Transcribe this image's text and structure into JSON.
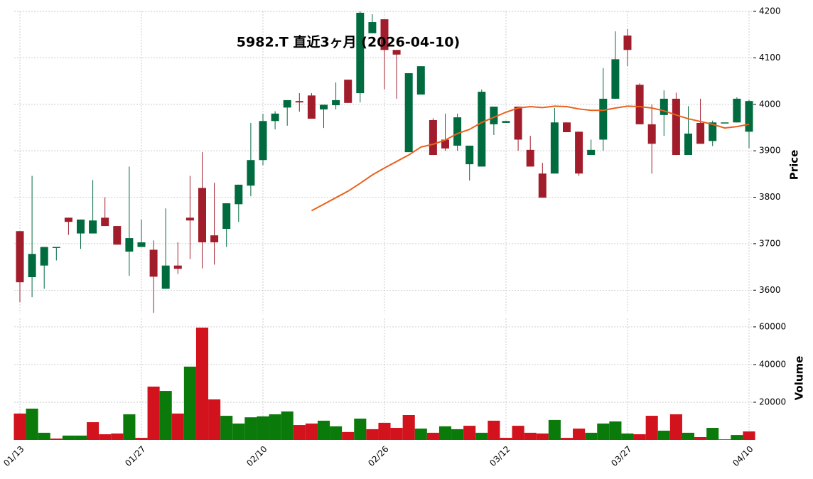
{
  "chart_data": {
    "type": "candlestick",
    "title": "5982.T 直近3ヶ月 (2026-04-10)",
    "ylabel": "Price",
    "categories": [
      "01/13",
      null,
      null,
      null,
      null,
      null,
      null,
      null,
      null,
      null,
      "01/27",
      null,
      null,
      null,
      null,
      null,
      null,
      null,
      null,
      null,
      "02/10",
      null,
      null,
      null,
      null,
      null,
      null,
      null,
      null,
      null,
      "02/26",
      null,
      null,
      null,
      null,
      null,
      null,
      null,
      null,
      null,
      "03/12",
      null,
      null,
      null,
      null,
      null,
      null,
      null,
      null,
      null,
      "03/27",
      null,
      null,
      null,
      null,
      null,
      null,
      null,
      null,
      null,
      "04/10"
    ],
    "open": [
      3727,
      3628,
      3653,
      3693,
      3756,
      3722,
      3722,
      3756,
      3738,
      3683,
      3693,
      3687,
      3603,
      3653,
      3756,
      3820,
      3718,
      3732,
      3785,
      3825,
      3880,
      3964,
      3993,
      4007,
      4019,
      3989,
      3998,
      4053,
      4024,
      4153,
      4183,
      4117,
      3897,
      4021,
      3966,
      3924,
      3911,
      3871,
      3866,
      3957,
      3960,
      3995,
      3902,
      3851,
      3851,
      3961,
      3941,
      3891,
      3924,
      4012,
      4148,
      4042,
      3957,
      3977,
      4012,
      3891,
      3960,
      3921,
      3961,
      3961,
      3941
    ],
    "high": [
      3727,
      3846,
      3693,
      3693,
      3756,
      3752,
      3837,
      3800,
      3738,
      3866,
      3752,
      3707,
      3776,
      3703,
      3846,
      3897,
      3831,
      3787,
      3827,
      3960,
      3980,
      3985,
      4009,
      4024,
      4024,
      3999,
      4047,
      4053,
      4200,
      4194,
      4183,
      4117,
      4067,
      4082,
      3970,
      3980,
      3980,
      3911,
      4032,
      3995,
      3964,
      3995,
      3932,
      3874,
      3992,
      3961,
      3941,
      3924,
      4078,
      4157,
      4162,
      4045,
      4000,
      4030,
      4025,
      3996,
      4012,
      3965,
      3961,
      4015,
      4010
    ],
    "low": [
      3574,
      3585,
      3603,
      3664,
      3719,
      3689,
      3722,
      3738,
      3698,
      3631,
      3693,
      3551,
      3603,
      3635,
      3667,
      3647,
      3655,
      3693,
      3747,
      3802,
      3869,
      3946,
      3954,
      3984,
      3969,
      3949,
      3989,
      4003,
      4004,
      4153,
      4032,
      4012,
      3897,
      4021,
      3891,
      3900,
      3900,
      3836,
      3866,
      3934,
      3960,
      3900,
      3866,
      3799,
      3851,
      3940,
      3846,
      3891,
      3900,
      4012,
      4082,
      3957,
      3851,
      3932,
      3891,
      3891,
      3915,
      3910,
      3961,
      3961,
      3906
    ],
    "close": [
      3617,
      3678,
      3693,
      3693,
      3747,
      3752,
      3750,
      3738,
      3698,
      3712,
      3703,
      3629,
      3653,
      3646,
      3750,
      3703,
      3703,
      3787,
      3827,
      3880,
      3964,
      3980,
      4009,
      4004,
      3969,
      3999,
      4009,
      4003,
      4197,
      4177,
      4117,
      4107,
      4067,
      4082,
      3891,
      3905,
      3972,
      3911,
      4027,
      3995,
      3964,
      3924,
      3866,
      3799,
      3961,
      3940,
      3851,
      3902,
      4012,
      4097,
      4117,
      3957,
      3915,
      4012,
      3891,
      3937,
      3915,
      3961,
      3961,
      4012,
      4007
    ],
    "up_color": "#006b3f",
    "down_color": "#a11d2b",
    "ylim": [
      3550,
      4200
    ],
    "yticks": [
      3600,
      3700,
      3800,
      3900,
      4000,
      4100,
      4200
    ],
    "grid": true,
    "ma": {
      "color": "#e8621e",
      "values": [
        null,
        null,
        null,
        null,
        null,
        null,
        null,
        null,
        null,
        null,
        null,
        null,
        null,
        null,
        null,
        null,
        null,
        null,
        null,
        null,
        null,
        null,
        null,
        null,
        3771,
        3785,
        3799,
        3813,
        3830,
        3848,
        3863,
        3877,
        3891,
        3908,
        3914,
        3923,
        3937,
        3946,
        3961,
        3972,
        3983,
        3992,
        3995,
        3993,
        3996,
        3995,
        3990,
        3987,
        3987,
        3992,
        3996,
        3995,
        3992,
        3986,
        3977,
        3969,
        3963,
        3957,
        3949,
        3952,
        3957
      ]
    },
    "volume": {
      "ylabel": "Volume",
      "values": [
        14000,
        16600,
        3800,
        700,
        2300,
        2300,
        9400,
        3000,
        3400,
        13600,
        1100,
        28300,
        26000,
        14000,
        38900,
        59600,
        21500,
        12800,
        8700,
        12000,
        12500,
        13600,
        15100,
        7900,
        8700,
        10200,
        7200,
        4200,
        11300,
        5700,
        9100,
        6400,
        13200,
        6000,
        3800,
        7200,
        5700,
        7500,
        3800,
        10200,
        1100,
        7500,
        3800,
        3400,
        10600,
        1100,
        6000,
        3800,
        8700,
        9800,
        3400,
        3000,
        12800,
        4900,
        13600,
        3800,
        1500,
        6400,
        300,
        2600,
        4500
      ],
      "up_color": "#0a7a0a",
      "down_color": "#d2121c",
      "ylim": [
        0,
        64500
      ],
      "yticks": [
        20000,
        40000,
        60000
      ]
    }
  }
}
